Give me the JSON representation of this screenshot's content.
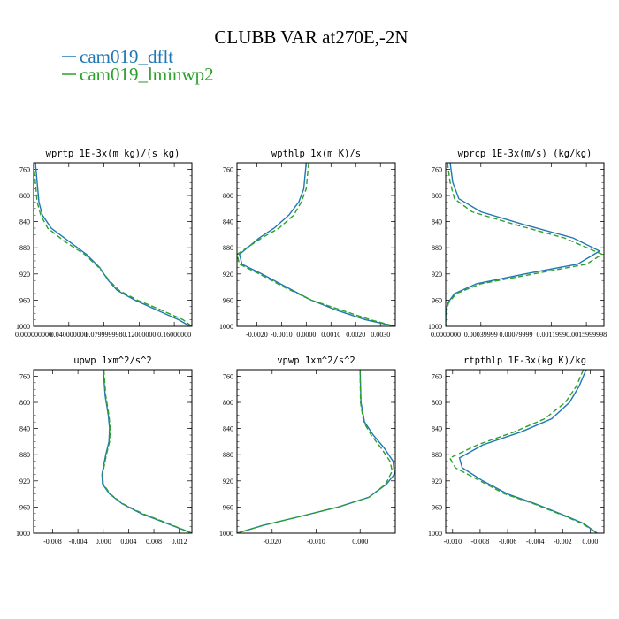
{
  "title": "CLUBB VAR at270E,-2N",
  "legend": [
    {
      "label": "cam019_dflt",
      "color": "#1f77b4"
    },
    {
      "label": "cam019_lminwp2",
      "color": "#2ca02c"
    }
  ],
  "chart_data": [
    {
      "type": "line",
      "title": "wprtp   1E-3x(m kg)/(s kg)",
      "xlim": [
        0,
        0.18
      ],
      "ylim": [
        1000,
        750
      ],
      "xticks": [
        0.0,
        0.04,
        0.08,
        0.12,
        0.16
      ],
      "xtick_labels": [
        "0.000000000",
        "0.040000000",
        "0.079999998",
        "0.12000000",
        "0.16000000"
      ],
      "yticks": [
        760,
        800,
        840,
        880,
        920,
        960,
        1000
      ],
      "ytick_labels": [
        "760",
        "800",
        "840",
        "880",
        "920",
        "960",
        "1000"
      ],
      "series": [
        {
          "name": "cam019_dflt",
          "color": "#1f77b4",
          "dash": "",
          "x": [
            0.002,
            0.004,
            0.006,
            0.01,
            0.02,
            0.04,
            0.06,
            0.075,
            0.085,
            0.095,
            0.115,
            0.14,
            0.165,
            0.178
          ],
          "y": [
            750,
            780,
            810,
            830,
            850,
            870,
            890,
            910,
            930,
            945,
            960,
            975,
            990,
            1000
          ]
        },
        {
          "name": "cam019_lminwp2",
          "color": "#2ca02c",
          "dash": "6,3",
          "x": [
            0.0,
            0.002,
            0.004,
            0.008,
            0.016,
            0.035,
            0.058,
            0.074,
            0.086,
            0.097,
            0.118,
            0.145,
            0.17,
            0.18
          ],
          "y": [
            750,
            780,
            810,
            830,
            850,
            870,
            890,
            910,
            930,
            945,
            960,
            975,
            990,
            1000
          ]
        }
      ]
    },
    {
      "type": "line",
      "title": "wpthlp   1x(m K)/s",
      "xlim": [
        -0.0028,
        0.0036
      ],
      "ylim": [
        1000,
        750
      ],
      "xticks": [
        -0.002,
        -0.001,
        0.0,
        0.001,
        0.002,
        0.003
      ],
      "xtick_labels": [
        "-0.0020",
        "-0.0010",
        "0.0000",
        "0.0010",
        "0.0020",
        "0.0030"
      ],
      "yticks": [
        760,
        800,
        840,
        880,
        920,
        960,
        1000
      ],
      "ytick_labels": [
        "760",
        "800",
        "840",
        "880",
        "920",
        "960",
        "1000"
      ],
      "series": [
        {
          "name": "cam019_dflt",
          "color": "#1f77b4",
          "dash": "",
          "x": [
            0.0,
            -0.0001,
            -0.0003,
            -0.0007,
            -0.0013,
            -0.0019,
            -0.0027,
            -0.0026,
            -0.0018,
            -0.0008,
            0.0002,
            0.0012,
            0.0024,
            0.0036
          ],
          "y": [
            750,
            790,
            810,
            830,
            850,
            865,
            890,
            905,
            920,
            940,
            960,
            975,
            990,
            1000
          ]
        },
        {
          "name": "cam019_lminwp2",
          "color": "#2ca02c",
          "dash": "6,3",
          "x": [
            0.0001,
            0.0,
            -0.0002,
            -0.0005,
            -0.0011,
            -0.0018,
            -0.0028,
            -0.0027,
            -0.0019,
            -0.0009,
            0.0002,
            0.0014,
            0.0026,
            0.0036
          ],
          "y": [
            750,
            790,
            810,
            830,
            850,
            865,
            890,
            905,
            920,
            940,
            960,
            975,
            990,
            1000
          ]
        }
      ]
    },
    {
      "type": "line",
      "title": "wprcp   1E-3x(m/s) (kg/kg)",
      "xlim": [
        0,
        0.0018
      ],
      "ylim": [
        1000,
        750
      ],
      "xticks": [
        0.0,
        0.0004,
        0.0008,
        0.0012,
        0.0016
      ],
      "xtick_labels": [
        "0.0000000",
        "0.00039999",
        "0.00079999",
        "0.0011999",
        "0.0015999998"
      ],
      "yticks": [
        760,
        800,
        840,
        880,
        920,
        960,
        1000
      ],
      "ytick_labels": [
        "760",
        "800",
        "840",
        "880",
        "920",
        "960",
        "1000"
      ],
      "series": [
        {
          "name": "cam019_dflt",
          "color": "#1f77b4",
          "dash": "",
          "x": [
            5e-05,
            8e-05,
            0.00015,
            0.0004,
            0.0009,
            0.00145,
            0.00175,
            0.0015,
            0.0009,
            0.00035,
            0.0001,
            2e-05,
            0.0,
            0.0
          ],
          "y": [
            750,
            780,
            805,
            825,
            845,
            865,
            885,
            905,
            920,
            935,
            950,
            965,
            985,
            1000
          ]
        },
        {
          "name": "cam019_lminwp2",
          "color": "#2ca02c",
          "dash": "6,3",
          "x": [
            2e-05,
            5e-05,
            0.0001,
            0.0003,
            0.0008,
            0.00135,
            0.00178,
            0.0016,
            0.001,
            0.0004,
            0.00012,
            3e-05,
            0.0,
            0.0
          ],
          "y": [
            750,
            780,
            805,
            825,
            845,
            865,
            890,
            905,
            920,
            935,
            950,
            965,
            985,
            1000
          ]
        }
      ]
    },
    {
      "type": "line",
      "title": "upwp   1xm^2/s^2",
      "xlim": [
        -0.011,
        0.014
      ],
      "ylim": [
        1000,
        750
      ],
      "xticks": [
        -0.008,
        -0.004,
        0.0,
        0.004,
        0.008,
        0.012
      ],
      "xtick_labels": [
        "-0.008",
        "-0.004",
        "0.000",
        "0.004",
        "0.008",
        "0.012"
      ],
      "yticks": [
        760,
        800,
        840,
        880,
        920,
        960,
        1000
      ],
      "ytick_labels": [
        "760",
        "800",
        "840",
        "880",
        "920",
        "960",
        "1000"
      ],
      "series": [
        {
          "name": "cam019_dflt",
          "color": "#1f77b4",
          "dash": "",
          "x": [
            0.0,
            0.0003,
            0.0008,
            0.001,
            0.0009,
            0.0004,
            -0.0002,
            -0.0001,
            0.001,
            0.003,
            0.006,
            0.01,
            0.014
          ],
          "y": [
            750,
            790,
            820,
            840,
            860,
            880,
            910,
            925,
            940,
            955,
            970,
            985,
            1000
          ]
        },
        {
          "name": "cam019_lminwp2",
          "color": "#2ca02c",
          "dash": "6,3",
          "x": [
            0.0001,
            0.0004,
            0.0009,
            0.0011,
            0.001,
            0.0005,
            -0.0001,
            0.0,
            0.0011,
            0.0031,
            0.0062,
            0.0102,
            0.014
          ],
          "y": [
            750,
            790,
            820,
            840,
            860,
            880,
            910,
            925,
            940,
            955,
            970,
            985,
            1000
          ]
        }
      ]
    },
    {
      "type": "line",
      "title": "vpwp   1xm^2/s^2",
      "xlim": [
        -0.028,
        0.008
      ],
      "ylim": [
        1000,
        750
      ],
      "xticks": [
        -0.02,
        -0.01,
        0.0
      ],
      "xtick_labels": [
        "-0.020",
        "-0.010",
        "0.000"
      ],
      "yticks": [
        760,
        800,
        840,
        880,
        920,
        960,
        1000
      ],
      "ytick_labels": [
        "760",
        "800",
        "840",
        "880",
        "920",
        "960",
        "1000"
      ],
      "series": [
        {
          "name": "cam019_dflt",
          "color": "#1f77b4",
          "dash": "",
          "x": [
            0.0,
            0.0002,
            0.001,
            0.003,
            0.0055,
            0.0075,
            0.0078,
            0.006,
            0.002,
            -0.005,
            -0.014,
            -0.022,
            -0.028
          ],
          "y": [
            750,
            800,
            830,
            850,
            870,
            890,
            910,
            925,
            945,
            960,
            975,
            988,
            1000
          ]
        },
        {
          "name": "cam019_lminwp2",
          "color": "#2ca02c",
          "dash": "6,3",
          "x": [
            0.0,
            0.0001,
            0.0008,
            0.0025,
            0.0048,
            0.0068,
            0.0073,
            0.0058,
            0.002,
            -0.005,
            -0.014,
            -0.022,
            -0.028
          ],
          "y": [
            750,
            800,
            830,
            850,
            870,
            890,
            905,
            925,
            945,
            960,
            975,
            988,
            1000
          ]
        }
      ]
    },
    {
      "type": "line",
      "title": "rtpthlp   1E-3x(kg K)/kg",
      "xlim": [
        -0.0105,
        0.001
      ],
      "ylim": [
        1000,
        750
      ],
      "xticks": [
        -0.01,
        -0.008,
        -0.006,
        -0.004,
        -0.002,
        0.0
      ],
      "xtick_labels": [
        "-0.010",
        "-0.008",
        "-0.006",
        "-0.004",
        "-0.002",
        "0.000"
      ],
      "yticks": [
        760,
        800,
        840,
        880,
        920,
        960,
        1000
      ],
      "ytick_labels": [
        "760",
        "800",
        "840",
        "880",
        "920",
        "960",
        "1000"
      ],
      "series": [
        {
          "name": "cam019_dflt",
          "color": "#1f77b4",
          "dash": "",
          "x": [
            -0.0003,
            -0.0008,
            -0.0015,
            -0.0028,
            -0.005,
            -0.0078,
            -0.0095,
            -0.0093,
            -0.0078,
            -0.006,
            -0.004,
            -0.0022,
            -0.0005,
            0.0005
          ],
          "y": [
            750,
            775,
            800,
            825,
            845,
            865,
            885,
            900,
            920,
            940,
            955,
            970,
            985,
            1000
          ]
        },
        {
          "name": "cam019_lminwp2",
          "color": "#2ca02c",
          "dash": "6,3",
          "x": [
            -0.0005,
            -0.001,
            -0.0018,
            -0.0033,
            -0.0055,
            -0.0082,
            -0.0102,
            -0.0098,
            -0.008,
            -0.0062,
            -0.0041,
            -0.0023,
            -0.0006,
            0.0005
          ],
          "y": [
            750,
            775,
            800,
            825,
            845,
            865,
            885,
            900,
            920,
            940,
            955,
            970,
            985,
            1000
          ]
        }
      ]
    }
  ]
}
